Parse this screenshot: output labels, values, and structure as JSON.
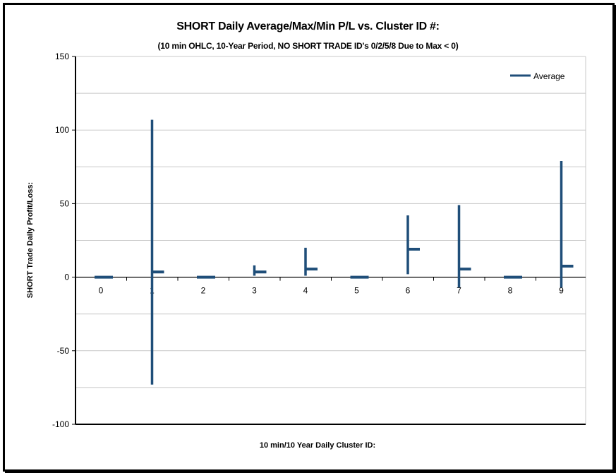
{
  "chart_data": {
    "type": "line",
    "title": "SHORT Daily Average/Max/Min P/L vs. Cluster ID #:",
    "subtitle": "(10 min OHLC, 10-Year Period, NO SHORT TRADE ID's 0/2/5/8 Due to Max < 0)",
    "xlabel": "10 min/10 Year Daily Cluster ID:",
    "ylabel": "SHORT Trade Daily Profit/Loss:",
    "categories": [
      "0",
      "1",
      "2",
      "3",
      "4",
      "5",
      "6",
      "7",
      "8",
      "9"
    ],
    "ylim": [
      -100,
      150
    ],
    "yticks": [
      -100,
      -50,
      0,
      50,
      100,
      150
    ],
    "grid": true,
    "legend_position": "top-right",
    "series_color": "#1f4e79",
    "series": [
      {
        "name": "Average",
        "values": [
          0,
          3.5,
          0,
          3.5,
          5.5,
          0,
          19,
          5.5,
          0,
          7.5
        ]
      }
    ],
    "max_values": [
      0,
      107,
      0,
      8,
      20,
      0,
      42,
      49,
      0,
      79
    ],
    "min_values": [
      0,
      -73,
      0,
      1,
      1,
      0,
      2,
      -7,
      0,
      -7
    ]
  }
}
